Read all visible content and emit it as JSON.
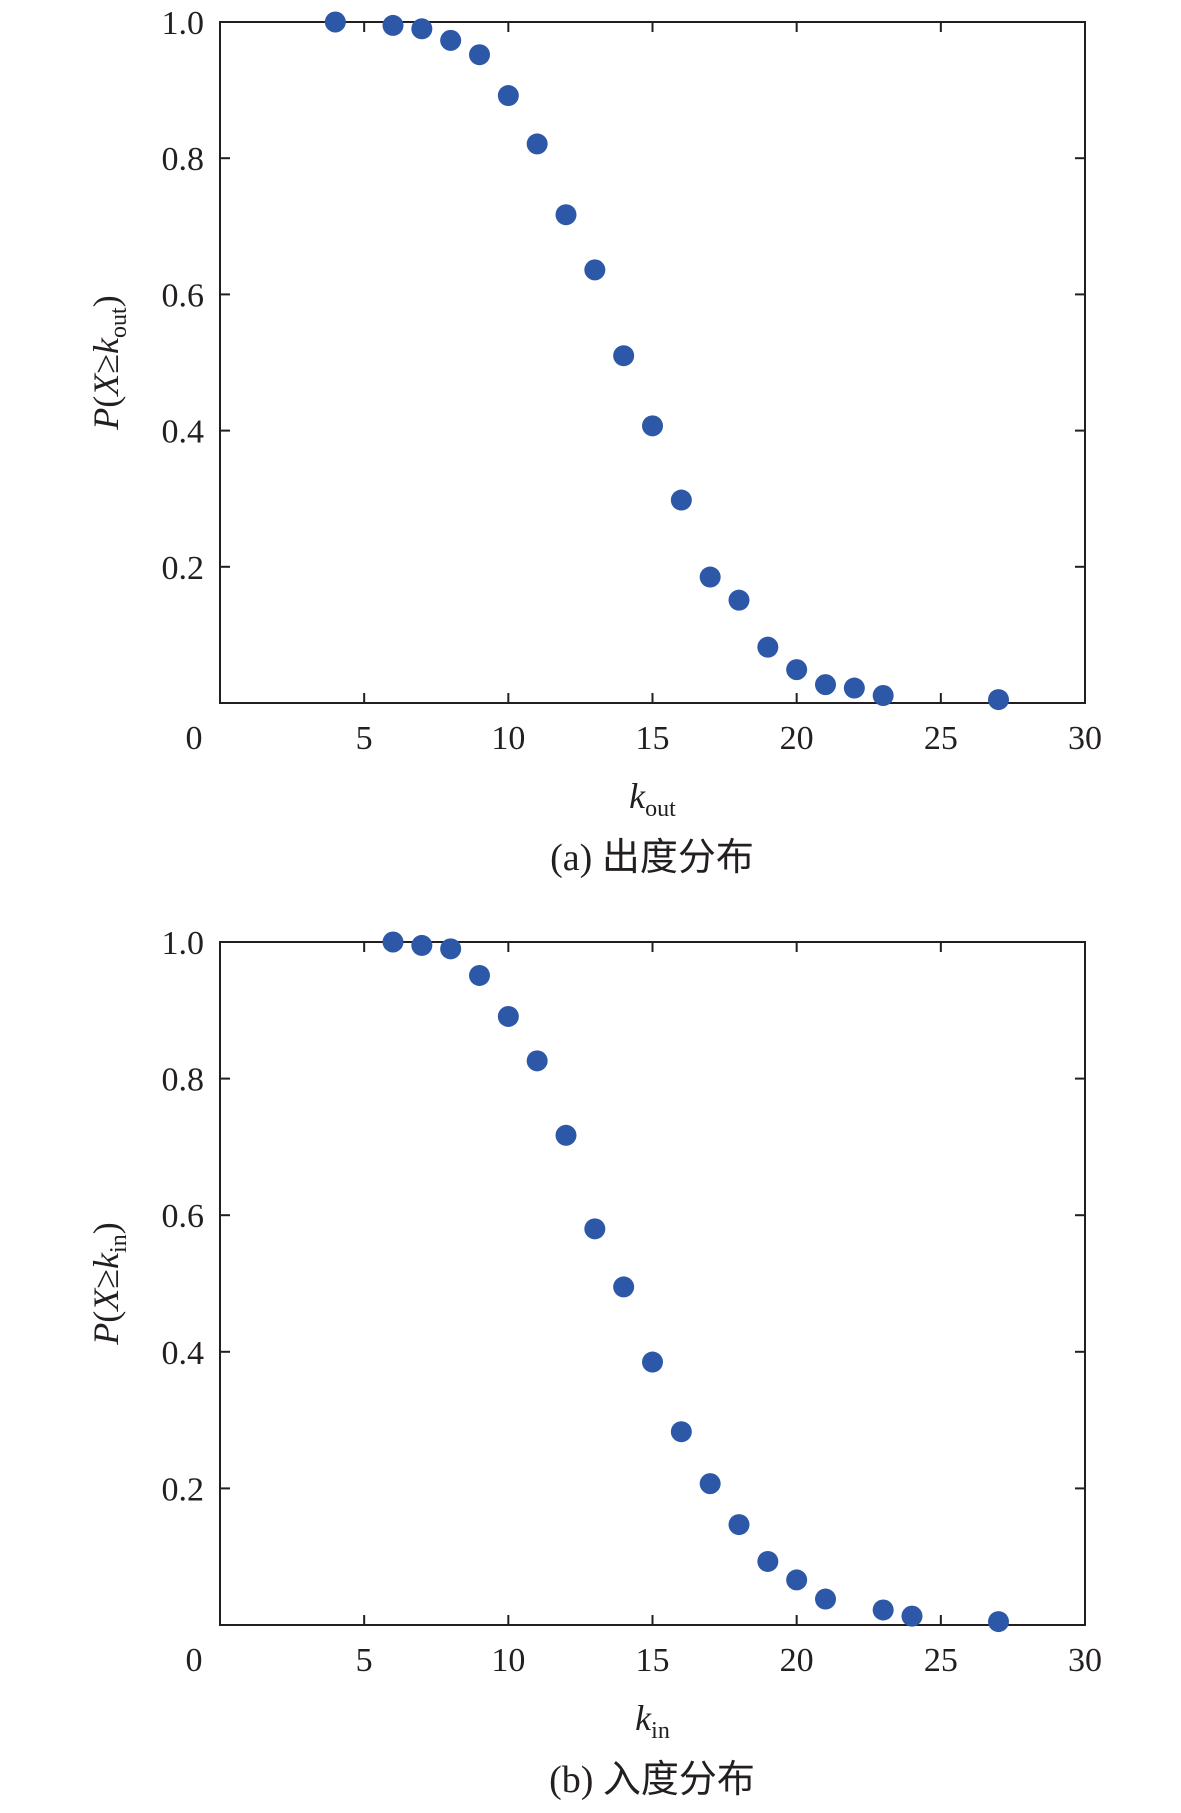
{
  "chart_data": [
    {
      "type": "scatter",
      "panel": "a",
      "caption": "(a) 出度分布",
      "xlabel_main": "k",
      "xlabel_sub": "out",
      "ylabel_prefix": "P(",
      "ylabel_var": "X",
      "ylabel_op": "≥",
      "ylabel_k": "k",
      "ylabel_sub": "out",
      "ylabel_suffix": ")",
      "xlim": [
        0,
        30
      ],
      "ylim": [
        0,
        1.0
      ],
      "xticks": [
        0,
        5,
        10,
        15,
        20,
        25,
        30
      ],
      "xtick_labels": [
        "0",
        "5",
        "10",
        "15",
        "20",
        "25",
        "30"
      ],
      "yticks": [
        0.2,
        0.4,
        0.6,
        0.8,
        1.0
      ],
      "ytick_labels": [
        "0.2",
        "0.4",
        "0.6",
        "0.8",
        "1.0"
      ],
      "x": [
        4,
        6,
        7,
        8,
        9,
        10,
        11,
        12,
        13,
        14,
        15,
        16,
        17,
        18,
        19,
        20,
        21,
        22,
        23,
        27
      ],
      "y": [
        1.0,
        0.995,
        0.99,
        0.973,
        0.952,
        0.892,
        0.821,
        0.717,
        0.636,
        0.51,
        0.407,
        0.298,
        0.185,
        0.151,
        0.082,
        0.049,
        0.027,
        0.022,
        0.011,
        0.005
      ],
      "marker_color": "#2d58a7",
      "grid": false
    },
    {
      "type": "scatter",
      "panel": "b",
      "caption": "(b) 入度分布",
      "xlabel_main": "k",
      "xlabel_sub": "in",
      "ylabel_prefix": "P(",
      "ylabel_var": "X",
      "ylabel_op": "≥",
      "ylabel_k": "k",
      "ylabel_sub": "in",
      "ylabel_suffix": ")",
      "xlim": [
        0,
        30
      ],
      "ylim": [
        0,
        1.0
      ],
      "xticks": [
        0,
        5,
        10,
        15,
        20,
        25,
        30
      ],
      "xtick_labels": [
        "0",
        "5",
        "10",
        "15",
        "20",
        "25",
        "30"
      ],
      "yticks": [
        0.2,
        0.4,
        0.6,
        0.8,
        1.0
      ],
      "ytick_labels": [
        "0.2",
        "0.4",
        "0.6",
        "0.8",
        "1.0"
      ],
      "x": [
        6,
        7,
        8,
        9,
        10,
        11,
        12,
        13,
        14,
        15,
        16,
        17,
        18,
        19,
        20,
        21,
        23,
        24,
        27
      ],
      "y": [
        1.0,
        0.995,
        0.99,
        0.951,
        0.891,
        0.826,
        0.717,
        0.58,
        0.495,
        0.385,
        0.283,
        0.207,
        0.147,
        0.093,
        0.066,
        0.038,
        0.022,
        0.013,
        0.005
      ],
      "marker_color": "#2d58a7",
      "grid": false
    }
  ]
}
